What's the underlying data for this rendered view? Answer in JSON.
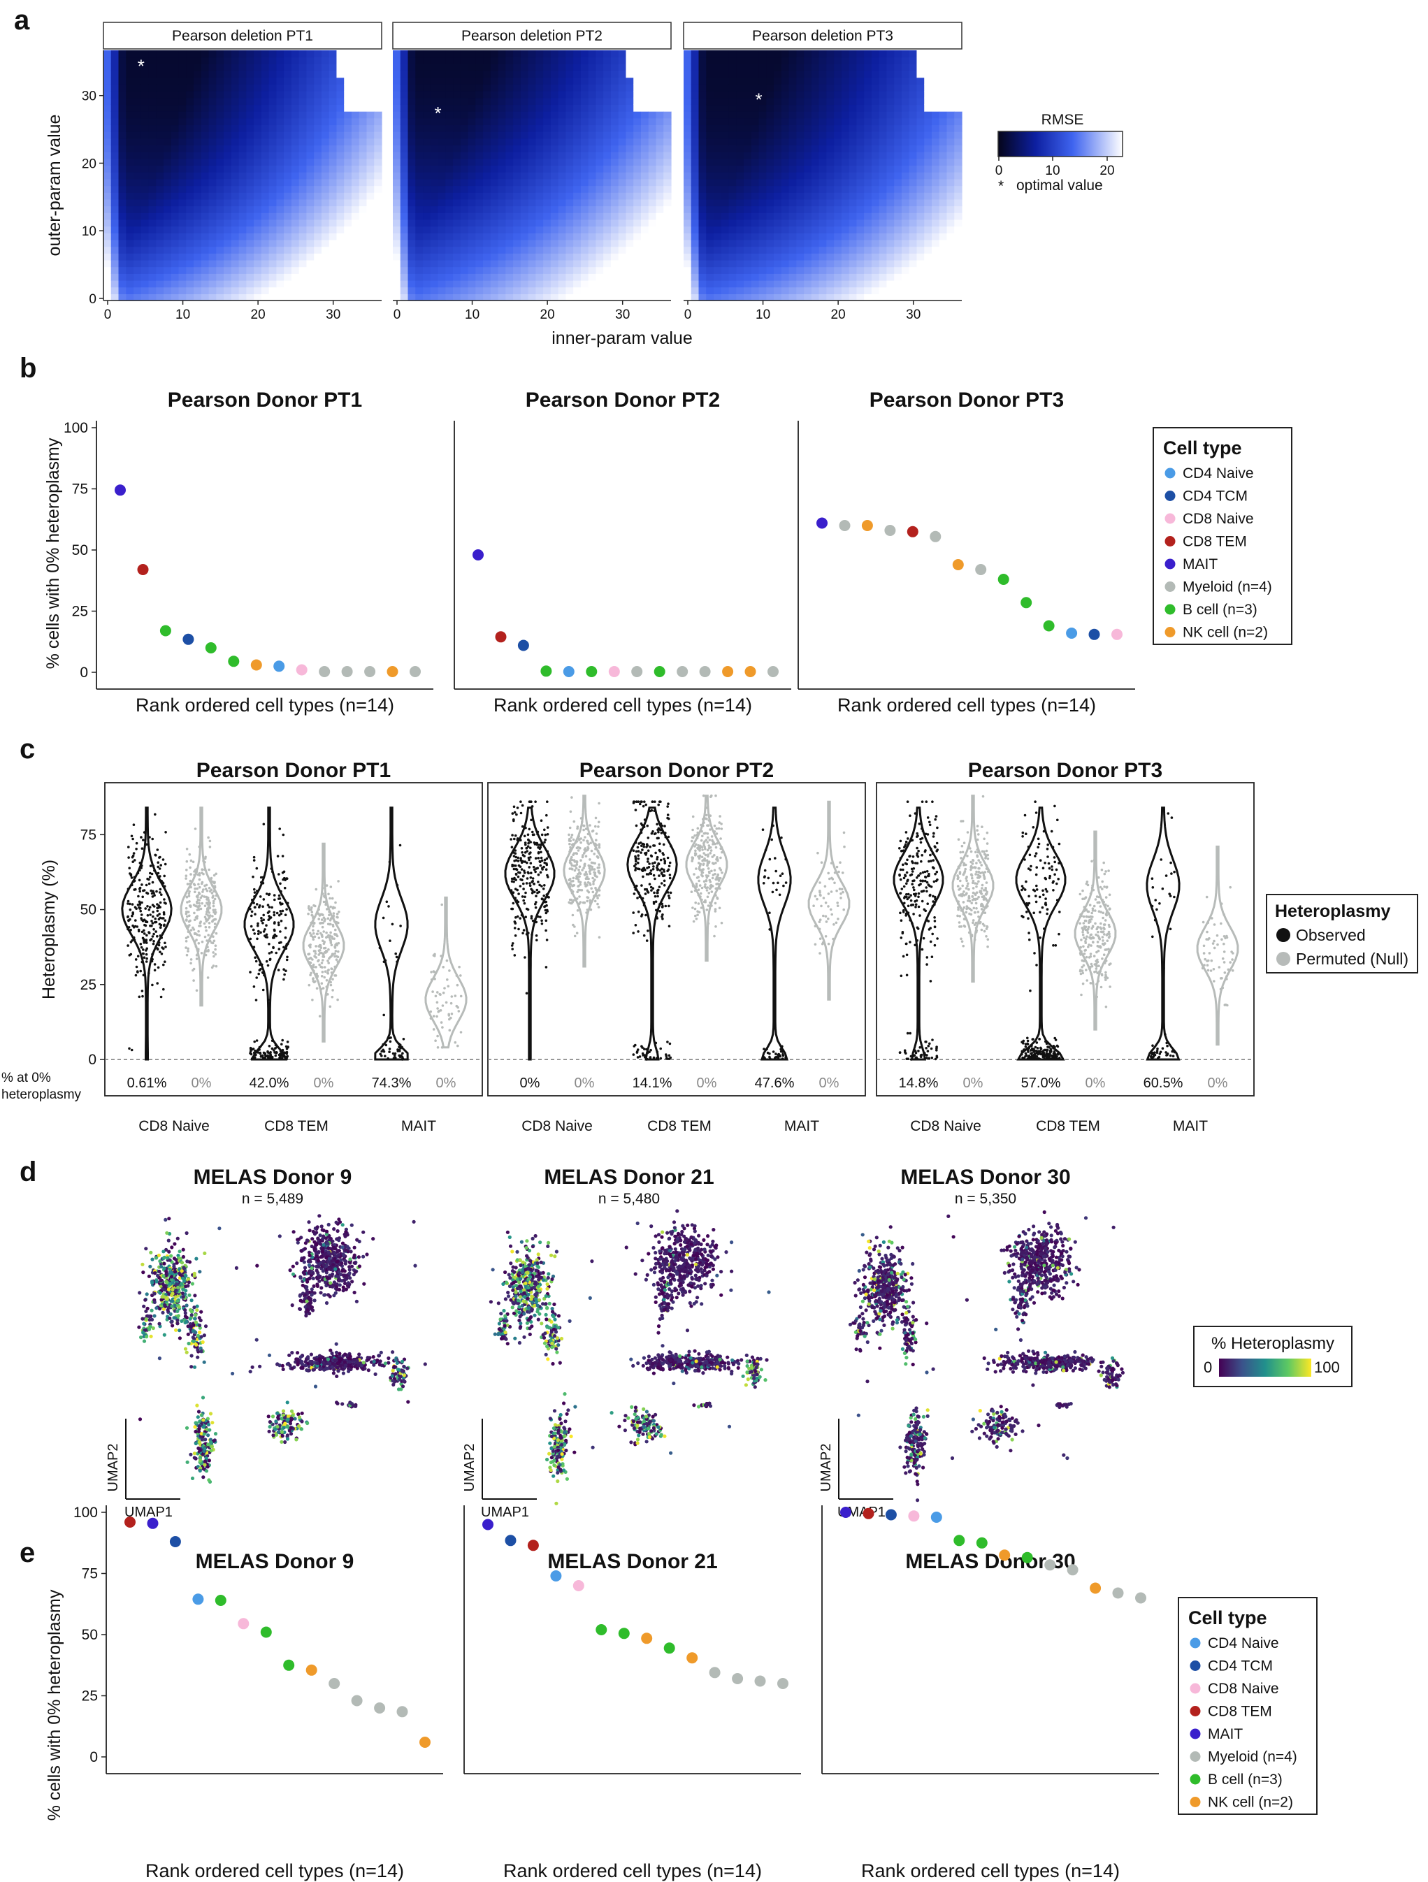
{
  "panel_labels": [
    "a",
    "b",
    "c",
    "d",
    "e"
  ],
  "colors": {
    "cd4_naive": "#4a9be6",
    "cd4_tcm": "#1d4fa5",
    "cd8_naive": "#f7b8d9",
    "cd8_tem": "#b3211d",
    "mait": "#3a1fcc",
    "myeloid": "#b3bab6",
    "b_cell": "#2fbc2b",
    "nk_cell": "#ef9a2a",
    "observed": "#111111",
    "permuted": "#b7bbb9"
  },
  "celltype_legend": {
    "title": "Cell type",
    "items": [
      {
        "key": "cd4_naive",
        "label": "CD4 Naive"
      },
      {
        "key": "cd4_tcm",
        "label": "CD4 TCM"
      },
      {
        "key": "cd8_naive",
        "label": "CD8 Naive"
      },
      {
        "key": "cd8_tem",
        "label": "CD8 TEM"
      },
      {
        "key": "mait",
        "label": "MAIT"
      },
      {
        "key": "myeloid",
        "label": "Myeloid (n=4)"
      },
      {
        "key": "b_cell",
        "label": "B cell (n=3)"
      },
      {
        "key": "nk_cell",
        "label": "NK cell (n=2)"
      }
    ]
  },
  "chart_data": [
    {
      "id": "a",
      "type": "heatmap",
      "panels": [
        {
          "strip": "Pearson deletion PT1",
          "optimal": [
            5,
            35
          ]
        },
        {
          "strip": "Pearson deletion PT2",
          "optimal": [
            6,
            28
          ]
        },
        {
          "strip": "Pearson deletion PT3",
          "optimal": [
            10,
            30
          ]
        }
      ],
      "xlabel": "inner-param value",
      "ylabel": "outer-param value",
      "xticks": [
        "0",
        "10",
        "20",
        "30"
      ],
      "yticks": [
        "0",
        "10",
        "20",
        "30"
      ],
      "xlim": [
        0,
        37
      ],
      "ylim": [
        0,
        37
      ],
      "legend": {
        "title": "RMSE",
        "ticks": [
          "0",
          "10",
          "20"
        ],
        "range": [
          0,
          23
        ],
        "note": "optimal value",
        "note_symbol": "*"
      }
    },
    {
      "id": "b",
      "type": "scatter",
      "ylabel": "% cells with 0% heteroplasmy",
      "xlabel": "Rank ordered cell types (n=14)",
      "ylim": [
        0,
        100
      ],
      "yticks": [
        "0",
        "25",
        "50",
        "75",
        "100"
      ],
      "panels": [
        {
          "title": "Pearson Donor PT1",
          "values": [
            74.5,
            42,
            17,
            13.5,
            10,
            4.5,
            3,
            2.5,
            1,
            0.3,
            0.3,
            0.3,
            0.3,
            0.3
          ],
          "types": [
            "mait",
            "cd8_tem",
            "b_cell",
            "cd4_tcm",
            "b_cell",
            "b_cell",
            "nk_cell",
            "cd4_naive",
            "cd8_naive",
            "myeloid",
            "myeloid",
            "myeloid",
            "nk_cell",
            "myeloid"
          ]
        },
        {
          "title": "Pearson Donor PT2",
          "values": [
            48,
            14.5,
            11,
            0.5,
            0.3,
            0.3,
            0.3,
            0.3,
            0.3,
            0.3,
            0.3,
            0.3,
            0.3,
            0.3
          ],
          "types": [
            "mait",
            "cd8_tem",
            "cd4_tcm",
            "b_cell",
            "cd4_naive",
            "b_cell",
            "cd8_naive",
            "myeloid",
            "b_cell",
            "myeloid",
            "myeloid",
            "nk_cell",
            "nk_cell",
            "myeloid"
          ]
        },
        {
          "title": "Pearson Donor PT3",
          "values": [
            61,
            60,
            60,
            58,
            57.5,
            55.5,
            44,
            42,
            38,
            28.5,
            19,
            16,
            15.5,
            15.5
          ],
          "types": [
            "mait",
            "myeloid",
            "nk_cell",
            "myeloid",
            "cd8_tem",
            "myeloid",
            "nk_cell",
            "myeloid",
            "b_cell",
            "b_cell",
            "b_cell",
            "cd4_naive",
            "cd4_tcm",
            "cd8_naive"
          ]
        }
      ]
    },
    {
      "id": "c",
      "type": "violin",
      "ylabel": "Heteroplasmy (%)",
      "ylim": [
        0,
        90
      ],
      "yticks": [
        "0",
        "25",
        "50",
        "75"
      ],
      "row_label": "% at 0% heteroplasmy",
      "categories": [
        "CD8 Naive",
        "CD8 TEM",
        "MAIT"
      ],
      "legend": {
        "title": "Heteroplasmy",
        "items": [
          "Observed",
          "Permuted (Null)"
        ]
      },
      "panels": [
        {
          "title": "Pearson Donor PT1",
          "observed_pct": [
            "0.61%",
            "42.0%",
            "74.3%"
          ],
          "permuted_pct": [
            "0%",
            "0%",
            "0%"
          ],
          "observed_center": [
            50,
            45,
            45
          ],
          "permuted_center": [
            50,
            38,
            20
          ]
        },
        {
          "title": "Pearson Donor PT2",
          "observed_pct": [
            "0%",
            "14.1%",
            "47.6%"
          ],
          "permuted_pct": [
            "0%",
            "0%",
            "0%"
          ],
          "observed_center": [
            62,
            65,
            60
          ],
          "permuted_center": [
            63,
            65,
            52
          ]
        },
        {
          "title": "Pearson Donor PT3",
          "observed_pct": [
            "14.8%",
            "57.0%",
            "60.5%"
          ],
          "permuted_pct": [
            "0%",
            "0%",
            "0%"
          ],
          "observed_center": [
            60,
            60,
            58
          ],
          "permuted_center": [
            58,
            42,
            37
          ]
        }
      ]
    },
    {
      "id": "d",
      "type": "scatter",
      "panels": [
        {
          "title": "MELAS Donor 9",
          "n": "n = 5,489",
          "level": 0.55
        },
        {
          "title": "MELAS Donor 21",
          "n": "n = 5,480",
          "level": 0.5
        },
        {
          "title": "MELAS Donor 30",
          "n": "n = 5,350",
          "level": 0.2
        }
      ],
      "xlabel": "UMAP1",
      "ylabel": "UMAP2",
      "colorbar": {
        "title": "% Heteroplasmy",
        "min_label": "0",
        "max_label": "100",
        "range": [
          0,
          100
        ]
      }
    },
    {
      "id": "e",
      "type": "scatter",
      "ylabel": "% cells with 0% heteroplasmy",
      "xlabel": "Rank ordered cell types (n=14)",
      "ylim": [
        0,
        100
      ],
      "yticks": [
        "0",
        "25",
        "50",
        "75",
        "100"
      ],
      "panels": [
        {
          "title": "MELAS Donor 9",
          "values": [
            96,
            95.5,
            88,
            64.5,
            64,
            54.5,
            51,
            37.5,
            35.5,
            30,
            23,
            20,
            18.5,
            6
          ],
          "types": [
            "cd8_tem",
            "mait",
            "cd4_tcm",
            "cd4_naive",
            "b_cell",
            "cd8_naive",
            "b_cell",
            "b_cell",
            "nk_cell",
            "myeloid",
            "myeloid",
            "myeloid",
            "myeloid",
            "nk_cell"
          ]
        },
        {
          "title": "MELAS Donor 21",
          "values": [
            95,
            88.5,
            86.5,
            74,
            70,
            52,
            50.5,
            48.5,
            44.5,
            40.5,
            34.5,
            32,
            31,
            30
          ],
          "types": [
            "mait",
            "cd4_tcm",
            "cd8_tem",
            "cd4_naive",
            "cd8_naive",
            "b_cell",
            "b_cell",
            "nk_cell",
            "b_cell",
            "nk_cell",
            "myeloid",
            "myeloid",
            "myeloid",
            "myeloid"
          ]
        },
        {
          "title": "MELAS Donor 30",
          "values": [
            100,
            99.5,
            99,
            98.5,
            98,
            88.5,
            87.5,
            82.5,
            81.5,
            78.5,
            76.5,
            69,
            67,
            65
          ],
          "types": [
            "mait",
            "cd8_tem",
            "cd4_tcm",
            "cd8_naive",
            "cd4_naive",
            "b_cell",
            "b_cell",
            "nk_cell",
            "b_cell",
            "myeloid",
            "myeloid",
            "nk_cell",
            "myeloid",
            "myeloid"
          ]
        }
      ]
    }
  ]
}
